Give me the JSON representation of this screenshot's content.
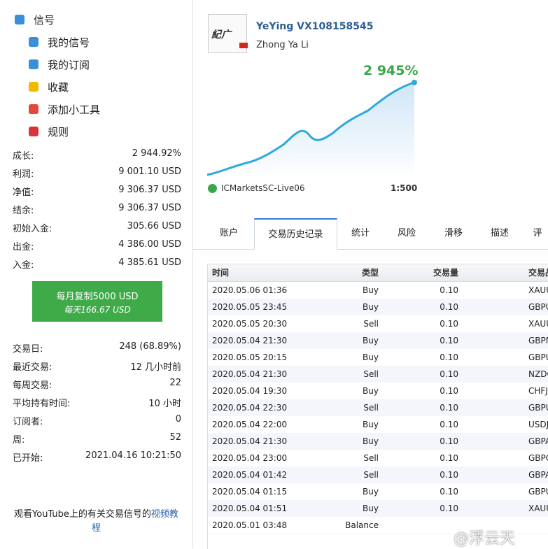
{
  "sidebar": {
    "menu": [
      "信号",
      "我的信号",
      "我的订阅",
      "收藏",
      "添加小工具",
      "规则"
    ],
    "stats": [
      {
        "label": "成长:",
        "value": "2 944.92%"
      },
      {
        "label": "利润:",
        "value": "9 001.10 USD"
      },
      {
        "label": "净值:",
        "value": "9 306.37 USD"
      },
      {
        "label": "结余:",
        "value": "9 306.37 USD"
      },
      {
        "label": "初始入金:",
        "value": "305.66 USD"
      },
      {
        "label": "出金:",
        "value": "4 386.00 USD"
      },
      {
        "label": "入金:",
        "value": "4 385.61 USD"
      }
    ],
    "button": {
      "title": "每月复制5000 USD",
      "subtitle": "每天166.67 USD"
    },
    "stats2": [
      {
        "label": "交易日:",
        "value": "248 (68.89%)"
      },
      {
        "label": "最近交易:",
        "value": "12 几小时前"
      },
      {
        "label": "每周交易:",
        "value": "22"
      },
      {
        "label": "平均持有时间:",
        "value": "10 小时"
      },
      {
        "label": "订阅者:",
        "value": "0"
      },
      {
        "label": "周:",
        "value": "52"
      },
      {
        "label": "已开始:",
        "value": "2021.04.16 10:21:50"
      }
    ],
    "footer": {
      "text": "观看YouTube上的有关交易信号的",
      "link": "视频教程"
    }
  },
  "profile": {
    "name": "YeYing VX108158545",
    "owner": "Zhong Ya Li",
    "growth": "2 945%",
    "server": "ICMarketsSC-Live06",
    "leverage": "1:500"
  },
  "tabs": [
    "账户",
    "交易历史记录",
    "统计",
    "风险",
    "滑移",
    "描述",
    "评"
  ],
  "table": {
    "header": [
      "时间",
      "类型",
      "交易量",
      "交易品"
    ],
    "rows": [
      [
        "2020.05.06 01:36",
        "Buy",
        "0.10",
        "XAUU"
      ],
      [
        "2020.05.05 23:45",
        "Buy",
        "0.10",
        "GBPU"
      ],
      [
        "2020.05.05 20:30",
        "Sell",
        "0.10",
        "XAUU"
      ],
      [
        "2020.05.04 21:30",
        "Buy",
        "0.10",
        "GBPN"
      ],
      [
        "2020.05.05 20:15",
        "Buy",
        "0.10",
        "GBPU"
      ],
      [
        "2020.05.04 21:30",
        "Sell",
        "0.10",
        "NZDC"
      ],
      [
        "2020.05.04 19:30",
        "Buy",
        "0.10",
        "CHFJ"
      ],
      [
        "2020.05.04 22:30",
        "Sell",
        "0.10",
        "GBPU"
      ],
      [
        "2020.05.04 22:00",
        "Buy",
        "0.10",
        "USDJ"
      ],
      [
        "2020.05.04 21:30",
        "Buy",
        "0.10",
        "GBPA"
      ],
      [
        "2020.05.04 23:00",
        "Sell",
        "0.10",
        "GBPC"
      ],
      [
        "2020.05.04 01:42",
        "Sell",
        "0.10",
        "GBPA"
      ],
      [
        "2020.05.04 01:15",
        "Buy",
        "0.10",
        "GBPU"
      ],
      [
        "2020.05.04 01:51",
        "Buy",
        "0.10",
        "XAUU"
      ],
      [
        "2020.05.01 03:48",
        "Balance"
      ]
    ]
  },
  "watermark": "@浮云天"
}
